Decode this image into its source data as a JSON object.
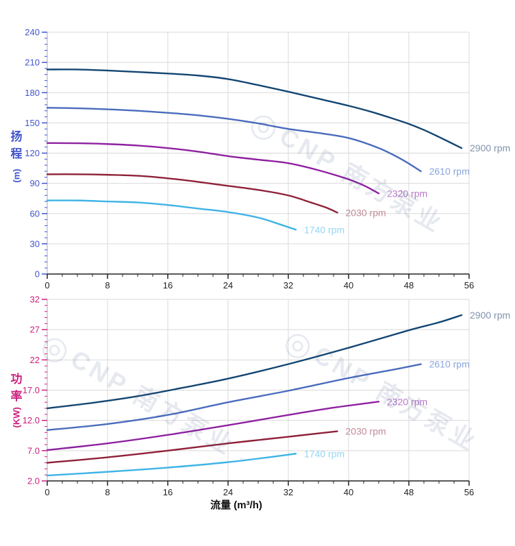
{
  "watermark": {
    "logo_glyph": "◎",
    "text": "CNP 南方泵业"
  },
  "chart_data": [
    {
      "type": "line",
      "title": "",
      "ylabel": "扬程 (m)",
      "ylabel_chars": "扬程",
      "ylabel_unit": "(m)",
      "xlabel": "",
      "xlim": [
        0,
        56
      ],
      "ylim": [
        0,
        240
      ],
      "x_tick_labels": [
        "0",
        "8",
        "16",
        "24",
        "32",
        "40",
        "48",
        "56"
      ],
      "y_tick_labels": [
        "0",
        "30",
        "60",
        "90",
        "120",
        "150",
        "180",
        "210",
        "240"
      ],
      "x_minor_step": 2,
      "y_minor_step": 6,
      "grid": true,
      "legend_position": "curve-ends",
      "axis_color": "#4053cb",
      "x_axis_color": "#222222",
      "axis_line_color": "#c5c7cd",
      "grid_color": "#d9d9d9",
      "series": [
        {
          "name": "2900 rpm",
          "color": "#134672",
          "label_color": "#8093ad",
          "points": [
            [
              0,
              203
            ],
            [
              4,
              203
            ],
            [
              8,
              202
            ],
            [
              12,
              200.5
            ],
            [
              16,
              199
            ],
            [
              20,
              197
            ],
            [
              24,
              193.5
            ],
            [
              28,
              187.5
            ],
            [
              32,
              181
            ],
            [
              36,
              174
            ],
            [
              40,
              167
            ],
            [
              43,
              161
            ],
            [
              46,
              154
            ],
            [
              48,
              149
            ],
            [
              50,
              143
            ],
            [
              52,
              136
            ],
            [
              55,
              125
            ]
          ]
        },
        {
          "name": "2610 rpm",
          "color": "#4a6bbd",
          "label_color": "#8ba4da",
          "points": [
            [
              0,
              165
            ],
            [
              4,
              164.5
            ],
            [
              8,
              163.5
            ],
            [
              12,
              162
            ],
            [
              16,
              160
            ],
            [
              20,
              157.5
            ],
            [
              24,
              154
            ],
            [
              28,
              149.5
            ],
            [
              32,
              144
            ],
            [
              36,
              140
            ],
            [
              40,
              135
            ],
            [
              44,
              125
            ],
            [
              47,
              114
            ],
            [
              49.6,
              102
            ]
          ]
        },
        {
          "name": "2320 rpm",
          "color": "#8e21a0",
          "label_color": "#b678c7",
          "points": [
            [
              0,
              130
            ],
            [
              4,
              129.8
            ],
            [
              8,
              129
            ],
            [
              12,
              127.5
            ],
            [
              16,
              125
            ],
            [
              20,
              121.5
            ],
            [
              24,
              117
            ],
            [
              28,
              113.5
            ],
            [
              32,
              110
            ],
            [
              36,
              103
            ],
            [
              40,
              94
            ],
            [
              42,
              88
            ],
            [
              44,
              80
            ]
          ]
        },
        {
          "name": "2030 rpm",
          "color": "#8e2138",
          "label_color": "#c08a97",
          "points": [
            [
              0,
              99
            ],
            [
              4,
              99
            ],
            [
              8,
              98.5
            ],
            [
              12,
              97.5
            ],
            [
              16,
              95
            ],
            [
              20,
              91.5
            ],
            [
              24,
              87.5
            ],
            [
              28,
              83.5
            ],
            [
              32,
              78
            ],
            [
              35,
              71
            ],
            [
              37,
              66
            ],
            [
              38.5,
              61
            ]
          ]
        },
        {
          "name": "1740 rpm",
          "color": "#3eb3e6",
          "label_color": "#96d5f2",
          "points": [
            [
              0,
              73
            ],
            [
              4,
              73
            ],
            [
              8,
              72
            ],
            [
              12,
              71
            ],
            [
              16,
              68.5
            ],
            [
              20,
              65
            ],
            [
              24,
              61.5
            ],
            [
              28,
              56
            ],
            [
              31,
              49
            ],
            [
              33,
              44
            ]
          ]
        }
      ]
    },
    {
      "type": "line",
      "title": "",
      "ylabel": "功率 (KW)",
      "ylabel_chars": "功率",
      "ylabel_unit": "(KW)",
      "xlabel": "流量 (m³/h)",
      "xlim": [
        0,
        56
      ],
      "ylim": [
        2,
        32
      ],
      "x_tick_labels": [
        "0",
        "8",
        "16",
        "24",
        "32",
        "40",
        "48",
        "56"
      ],
      "y_tick_labels": [
        "2.0",
        "7.0",
        "12.0",
        "17.0",
        "22",
        "27",
        "32"
      ],
      "x_minor_step": 2,
      "y_minor_step": 1,
      "grid": true,
      "legend_position": "curve-ends",
      "axis_color": "#cb1f7f",
      "x_axis_color": "#222222",
      "axis_line_color": "#c5c7cd",
      "grid_color": "#d9d9d9",
      "series": [
        {
          "name": "2900 rpm",
          "color": "#134672",
          "label_color": "#8093ad",
          "points": [
            [
              0,
              14.0
            ],
            [
              6,
              14.9
            ],
            [
              12,
              16.0
            ],
            [
              18,
              17.4
            ],
            [
              24,
              18.9
            ],
            [
              32,
              21.3
            ],
            [
              40,
              24.0
            ],
            [
              48,
              26.9
            ],
            [
              52,
              28.2
            ],
            [
              55,
              29.4
            ]
          ]
        },
        {
          "name": "2610 rpm",
          "color": "#4a6bbd",
          "label_color": "#8ba4da",
          "points": [
            [
              0,
              10.4
            ],
            [
              8,
              11.4
            ],
            [
              16,
              12.9
            ],
            [
              24,
              15.0
            ],
            [
              32,
              16.9
            ],
            [
              40,
              19.0
            ],
            [
              46,
              20.4
            ],
            [
              49.6,
              21.3
            ]
          ]
        },
        {
          "name": "2320 rpm",
          "color": "#8e21a0",
          "label_color": "#b678c7",
          "points": [
            [
              0,
              7.1
            ],
            [
              8,
              8.2
            ],
            [
              16,
              9.6
            ],
            [
              24,
              11.2
            ],
            [
              32,
              12.9
            ],
            [
              38,
              14.1
            ],
            [
              44,
              15.1
            ]
          ]
        },
        {
          "name": "2030 rpm",
          "color": "#8e2138",
          "label_color": "#c08a97",
          "points": [
            [
              0,
              5.0
            ],
            [
              8,
              5.9
            ],
            [
              16,
              7.0
            ],
            [
              24,
              8.2
            ],
            [
              32,
              9.3
            ],
            [
              38.5,
              10.2
            ]
          ]
        },
        {
          "name": "1740 rpm",
          "color": "#3eb3e6",
          "label_color": "#96d5f2",
          "points": [
            [
              0,
              2.9
            ],
            [
              8,
              3.5
            ],
            [
              16,
              4.2
            ],
            [
              24,
              5.1
            ],
            [
              30,
              6.0
            ],
            [
              33,
              6.5
            ]
          ]
        }
      ]
    }
  ]
}
